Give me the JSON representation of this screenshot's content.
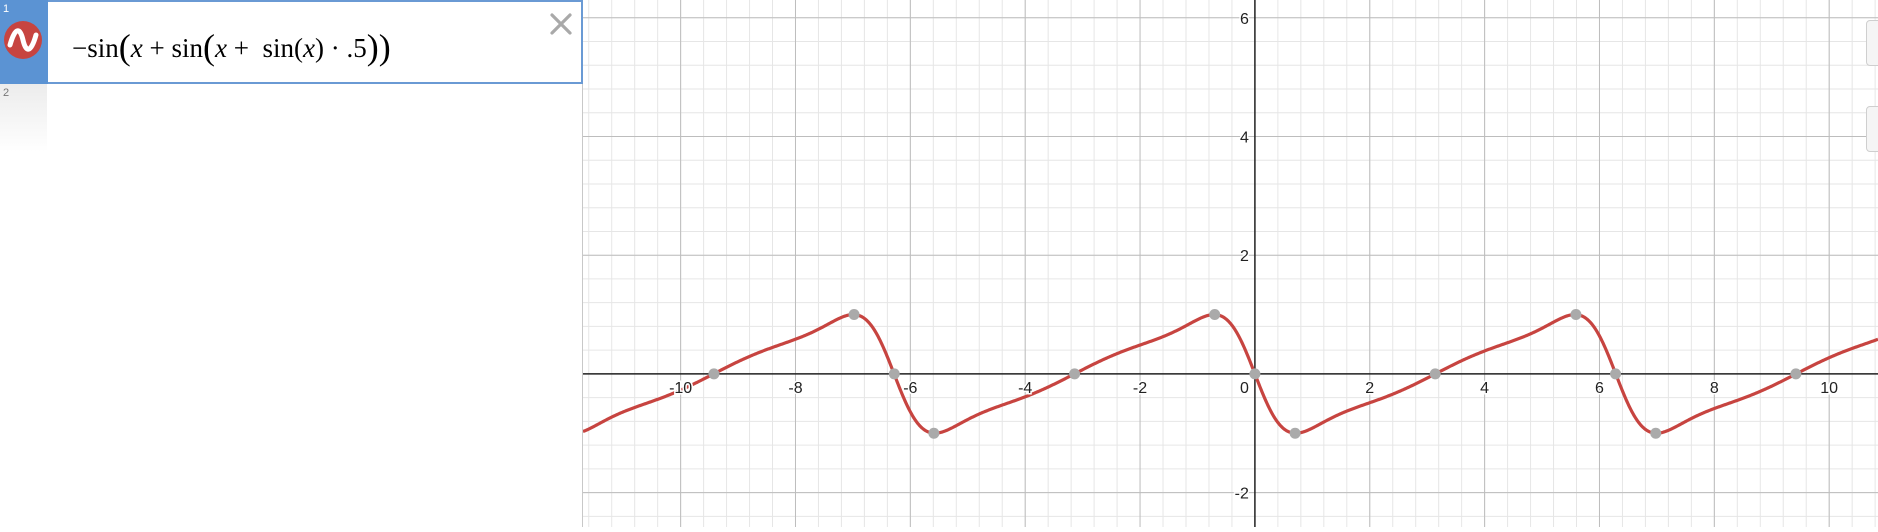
{
  "expression_list": {
    "rows": [
      {
        "number": "1",
        "active": true,
        "color": "#c74440",
        "icon": "sine-curve-icon",
        "latex_parts": {
          "neg": "−",
          "fn1": "sin",
          "x1": "x",
          "plus1": "+",
          "fn2": "sin",
          "x2": "x",
          "plus2": "+",
          "fn3": "sin",
          "x3": "x",
          "dot": "·",
          "coef": ".5"
        }
      },
      {
        "number": "2",
        "active": false
      }
    ]
  },
  "chart_data": {
    "type": "line",
    "function": "-sin(x + sin(x + sin(x) * .5))",
    "xlim": [
      -11.7,
      10.85
    ],
    "ylim": [
      -2.58,
      6.3
    ],
    "x_ticks": [
      -10,
      -8,
      -6,
      -4,
      -2,
      0,
      2,
      4,
      6,
      8,
      10
    ],
    "x_tick_labels": [
      "-10",
      "-8",
      "-6",
      "-4",
      "-2",
      "0",
      "2",
      "4",
      "6",
      "8",
      "10"
    ],
    "y_ticks": [
      -2,
      2,
      4,
      6
    ],
    "y_tick_labels": [
      "-2",
      "2",
      "4",
      "6"
    ],
    "grid": true,
    "series": [
      {
        "color": "#c74440"
      }
    ],
    "points": [
      {
        "x": -9.42,
        "y": 0
      },
      {
        "x": -6.98,
        "y": 1
      },
      {
        "x": -6.28,
        "y": 0
      },
      {
        "x": -5.59,
        "y": -1
      },
      {
        "x": -3.14,
        "y": 0
      },
      {
        "x": -0.7,
        "y": 1
      },
      {
        "x": 0,
        "y": 0
      },
      {
        "x": 0.7,
        "y": -1
      },
      {
        "x": 3.14,
        "y": 0
      },
      {
        "x": 5.59,
        "y": 1
      },
      {
        "x": 6.28,
        "y": 0
      },
      {
        "x": 6.98,
        "y": -1
      },
      {
        "x": 9.42,
        "y": 0
      }
    ]
  }
}
